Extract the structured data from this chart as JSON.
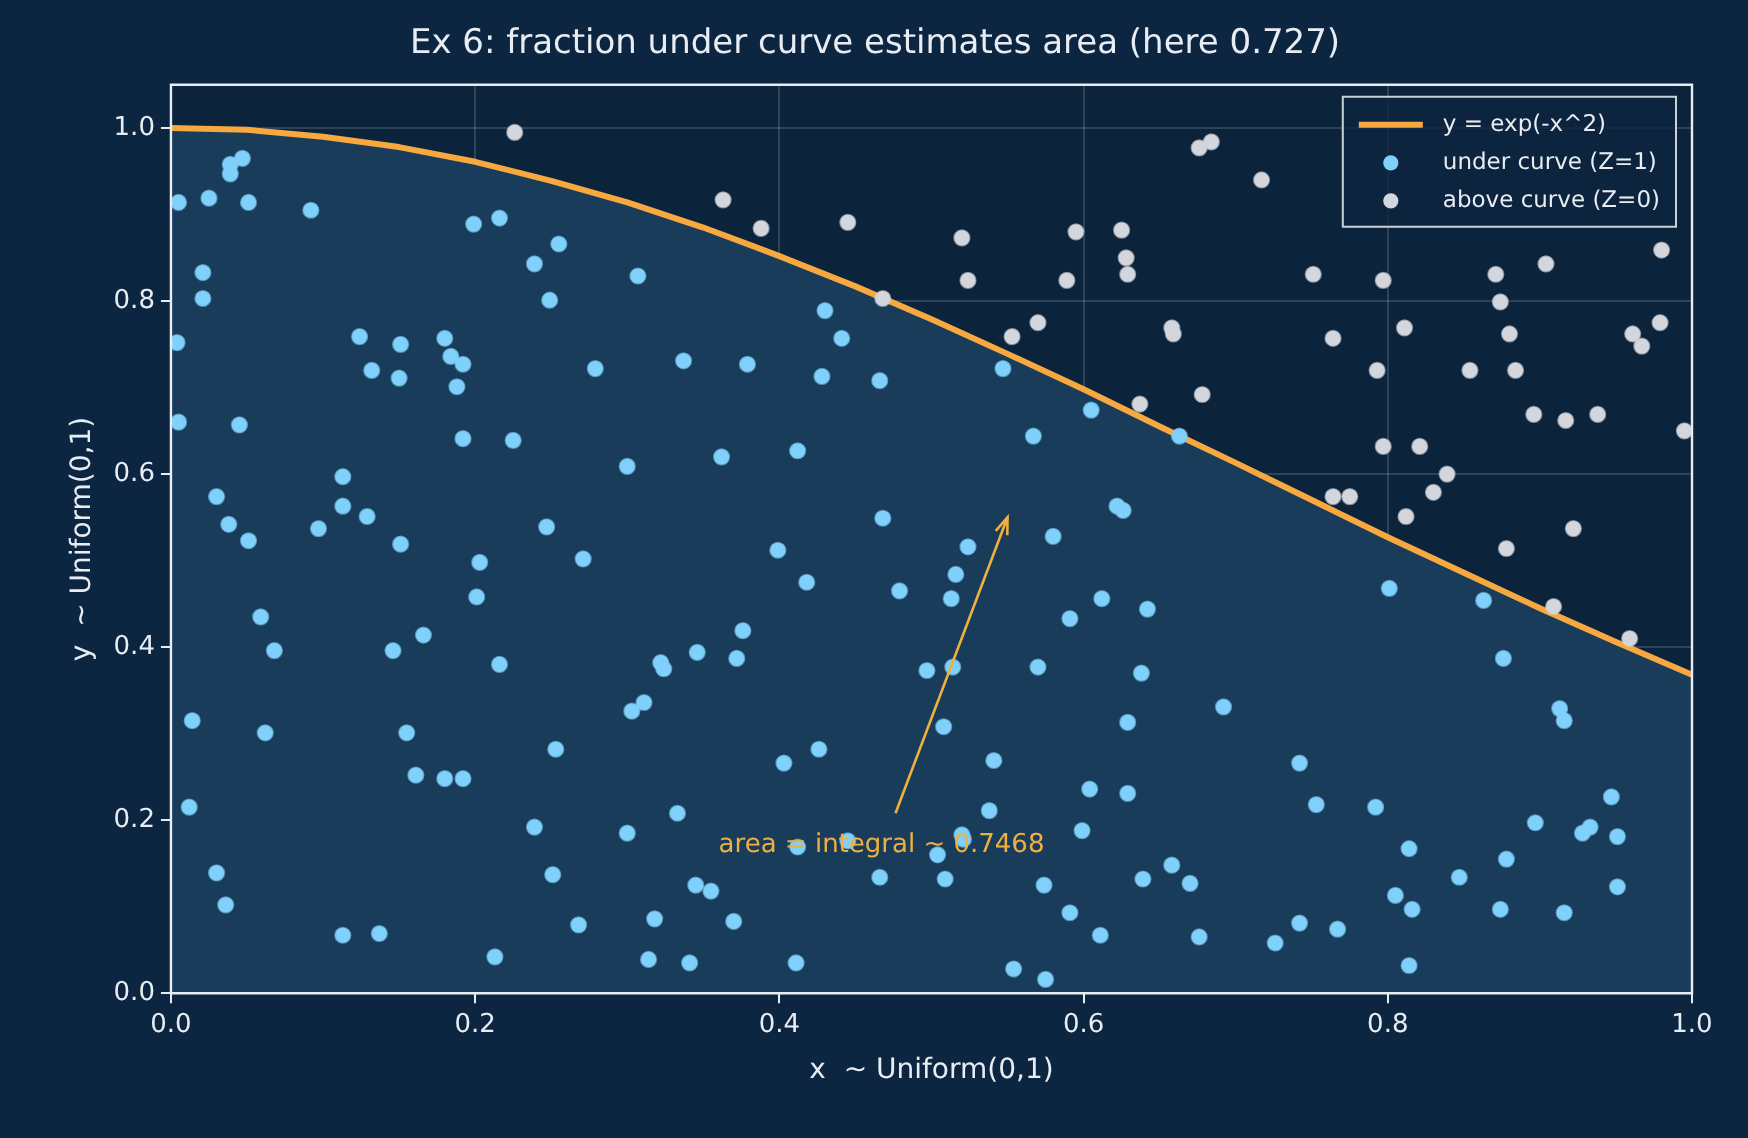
{
  "chart_data": {
    "type": "scatter",
    "title": "Ex 6: fraction under curve estimates area (here 0.727)",
    "xlabel": "x  ~ Uniform(0,1)",
    "ylabel": "y  ~ Uniform(0,1)",
    "xlim": [
      0,
      1
    ],
    "ylim": [
      0,
      1.05
    ],
    "xticks": [
      {
        "value": 0,
        "label": "0.0"
      },
      {
        "value": 0.2,
        "label": "0.2"
      },
      {
        "value": 0.4,
        "label": "0.4"
      },
      {
        "value": 0.6,
        "label": "0.6"
      },
      {
        "value": 0.8,
        "label": "0.8"
      },
      {
        "value": 1,
        "label": "1.0"
      }
    ],
    "yticks": [
      {
        "value": 0,
        "label": "0.0"
      },
      {
        "value": 0.2,
        "label": "0.2"
      },
      {
        "value": 0.4,
        "label": "0.4"
      },
      {
        "value": 0.6,
        "label": "0.6"
      },
      {
        "value": 0.8,
        "label": "0.8"
      },
      {
        "value": 1,
        "label": "1.0"
      }
    ],
    "grid": true,
    "legend": "top right",
    "marker": "circle",
    "annotations": [
      "area = integral ~ 0.7468"
    ],
    "series": [
      {
        "type": "area",
        "color": "#1a3c5b",
        "marker": "none",
        "x": [
          0,
          0.05,
          0.1,
          0.15,
          0.2,
          0.25,
          0.3,
          0.35,
          0.4,
          0.45,
          0.5,
          0.55,
          0.6,
          0.65,
          0.7,
          0.75,
          0.8,
          0.85,
          0.9,
          0.95,
          1
        ],
        "values": [
          1,
          0.998,
          0.99,
          0.978,
          0.961,
          0.939,
          0.914,
          0.885,
          0.852,
          0.817,
          0.779,
          0.739,
          0.698,
          0.655,
          0.613,
          0.57,
          0.527,
          0.486,
          0.445,
          0.406,
          0.368
        ]
      },
      {
        "type": "line",
        "name": "y = exp(-x^2)",
        "color": "#f7a940",
        "marker": "none",
        "line_style": "solid",
        "x": [
          0,
          0.05,
          0.1,
          0.15,
          0.2,
          0.25,
          0.3,
          0.35,
          0.4,
          0.45,
          0.5,
          0.55,
          0.6,
          0.65,
          0.7,
          0.75,
          0.8,
          0.85,
          0.9,
          0.95,
          1
        ],
        "values": [
          1,
          0.998,
          0.99,
          0.978,
          0.961,
          0.939,
          0.914,
          0.885,
          0.852,
          0.817,
          0.779,
          0.739,
          0.698,
          0.655,
          0.613,
          0.57,
          0.527,
          0.486,
          0.445,
          0.406,
          0.368
        ]
      },
      {
        "name": "under curve (Z=1)",
        "color": "#7fd0fa",
        "x": [
          0.039,
          0.039,
          0.047,
          0.005,
          0.025,
          0.051,
          0.092,
          0.199,
          0.216,
          0.255,
          0.239,
          0.307,
          0.249,
          0.021,
          0.021,
          0.004,
          0.124,
          0.151,
          0.18,
          0.184,
          0.192,
          0.132,
          0.15,
          0.188,
          0.279,
          0.337,
          0.005,
          0.045,
          0.192,
          0.225,
          0.3,
          0.113,
          0.03,
          0.113,
          0.129,
          0.038,
          0.097,
          0.051,
          0.151,
          0.247,
          0.203,
          0.271,
          0.201,
          0.059,
          0.068,
          0.146,
          0.166,
          0.216,
          0.322,
          0.324,
          0.014,
          0.062,
          0.155,
          0.253,
          0.303,
          0.311,
          0.161,
          0.18,
          0.192,
          0.012,
          0.239,
          0.3,
          0.333,
          0.03,
          0.036,
          0.251,
          0.113,
          0.137,
          0.268,
          0.318,
          0.213,
          0.314,
          0.43,
          0.441,
          0.379,
          0.428,
          0.466,
          0.547,
          0.605,
          0.567,
          0.663,
          0.362,
          0.412,
          0.468,
          0.622,
          0.626,
          0.524,
          0.58,
          0.399,
          0.418,
          0.479,
          0.516,
          0.513,
          0.591,
          0.612,
          0.642,
          0.376,
          0.346,
          0.372,
          0.497,
          0.514,
          0.57,
          0.638,
          0.508,
          0.629,
          0.403,
          0.426,
          0.541,
          0.604,
          0.629,
          0.538,
          0.599,
          0.52,
          0.521,
          0.445,
          0.412,
          0.504,
          0.466,
          0.509,
          0.345,
          0.355,
          0.574,
          0.658,
          0.639,
          0.67,
          0.37,
          0.591,
          0.611,
          0.341,
          0.411,
          0.554,
          0.575,
          0.801,
          0.863,
          0.876,
          0.692,
          0.913,
          0.916,
          0.742,
          0.753,
          0.792,
          0.947,
          0.897,
          0.928,
          0.933,
          0.951,
          0.814,
          0.878,
          0.847,
          0.805,
          0.816,
          0.874,
          0.916,
          0.951,
          0.676,
          0.742,
          0.767,
          0.726,
          0.814
        ],
        "values": [
          0.958,
          0.947,
          0.965,
          0.914,
          0.919,
          0.914,
          0.905,
          0.889,
          0.896,
          0.866,
          0.843,
          0.829,
          0.801,
          0.833,
          0.803,
          0.752,
          0.759,
          0.75,
          0.757,
          0.736,
          0.727,
          0.72,
          0.711,
          0.701,
          0.722,
          0.731,
          0.66,
          0.657,
          0.641,
          0.639,
          0.609,
          0.597,
          0.574,
          0.563,
          0.551,
          0.542,
          0.537,
          0.523,
          0.519,
          0.539,
          0.498,
          0.502,
          0.458,
          0.435,
          0.396,
          0.396,
          0.414,
          0.38,
          0.382,
          0.375,
          0.315,
          0.301,
          0.301,
          0.282,
          0.326,
          0.336,
          0.252,
          0.248,
          0.248,
          0.215,
          0.192,
          0.185,
          0.208,
          0.139,
          0.102,
          0.137,
          0.067,
          0.069,
          0.079,
          0.086,
          0.042,
          0.039,
          0.789,
          0.757,
          0.727,
          0.713,
          0.708,
          0.722,
          0.674,
          0.644,
          0.644,
          0.62,
          0.627,
          0.549,
          0.563,
          0.558,
          0.516,
          0.528,
          0.512,
          0.475,
          0.465,
          0.484,
          0.456,
          0.433,
          0.456,
          0.444,
          0.419,
          0.394,
          0.387,
          0.373,
          0.377,
          0.377,
          0.37,
          0.308,
          0.313,
          0.266,
          0.282,
          0.269,
          0.236,
          0.231,
          0.211,
          0.188,
          0.183,
          0.178,
          0.176,
          0.169,
          0.16,
          0.134,
          0.132,
          0.125,
          0.118,
          0.125,
          0.148,
          0.132,
          0.127,
          0.083,
          0.093,
          0.067,
          0.035,
          0.035,
          0.028,
          0.016,
          0.468,
          0.454,
          0.387,
          0.331,
          0.329,
          0.315,
          0.266,
          0.218,
          0.215,
          0.227,
          0.197,
          0.185,
          0.192,
          0.181,
          0.167,
          0.155,
          0.134,
          0.113,
          0.097,
          0.097,
          0.093,
          0.123,
          0.065,
          0.081,
          0.074,
          0.058,
          0.032
        ]
      },
      {
        "name": "above curve (Z=0)",
        "color": "#d3d6dc",
        "x": [
          0.226,
          0.363,
          0.388,
          0.445,
          0.52,
          0.595,
          0.625,
          0.628,
          0.629,
          0.524,
          0.589,
          0.468,
          0.57,
          0.553,
          0.658,
          0.659,
          0.637,
          0.676,
          0.684,
          0.717,
          0.98,
          0.751,
          0.797,
          0.871,
          0.904,
          0.874,
          0.764,
          0.811,
          0.88,
          0.961,
          0.967,
          0.979,
          0.793,
          0.854,
          0.884,
          0.678,
          0.896,
          0.917,
          0.938,
          0.995,
          0.797,
          0.821,
          0.839,
          0.83,
          0.764,
          0.775,
          0.812,
          0.922,
          0.878,
          0.909,
          0.959
        ],
        "values": [
          0.995,
          0.917,
          0.884,
          0.891,
          0.873,
          0.88,
          0.882,
          0.85,
          0.831,
          0.824,
          0.824,
          0.803,
          0.775,
          0.759,
          0.769,
          0.762,
          0.681,
          0.977,
          0.984,
          0.94,
          0.859,
          0.831,
          0.824,
          0.831,
          0.843,
          0.799,
          0.757,
          0.769,
          0.762,
          0.762,
          0.748,
          0.775,
          0.72,
          0.72,
          0.72,
          0.692,
          0.669,
          0.662,
          0.669,
          0.65,
          0.632,
          0.632,
          0.6,
          0.579,
          0.574,
          0.574,
          0.551,
          0.537,
          0.514,
          0.447,
          0.41
        ]
      }
    ]
  }
}
